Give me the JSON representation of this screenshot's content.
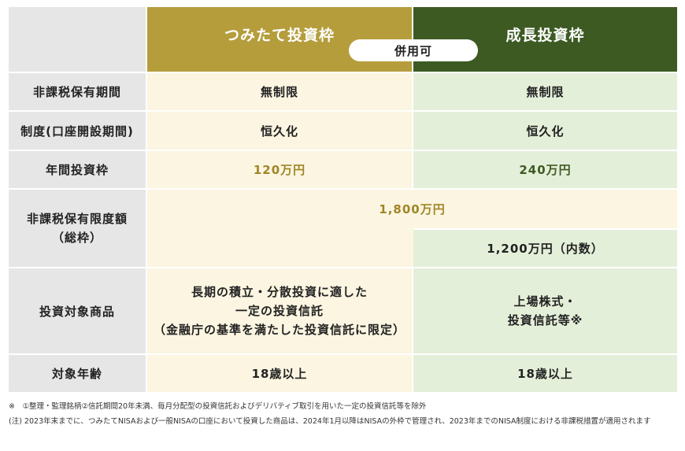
{
  "header": {
    "tsumitate": "つみたて投資枠",
    "seicho": "成長投資枠",
    "heiyo": "併用可"
  },
  "rows": {
    "hikazei_kikan": {
      "label": "非課税保有期間",
      "tsumitate": "無制限",
      "seicho": "無制限"
    },
    "seido": {
      "label": "制度(口座開設期間)",
      "tsumitate": "恒久化",
      "seicho": "恒久化"
    },
    "nenkan": {
      "label": "年間投資枠",
      "tsumitate": "120万円",
      "seicho": "240万円"
    },
    "gendo": {
      "label_line1": "非課税保有限度額",
      "label_line2": "（総枠）",
      "total": "1,800万円",
      "seicho": "1,200万円（内数）"
    },
    "shohin": {
      "label": "投資対象商品",
      "tsumitate_line1": "長期の積立・分散投資に適した",
      "tsumitate_line2": "一定の投資信託",
      "tsumitate_line3": "（金融庁の基準を満たした投資信託に限定）",
      "seicho_line1": "上場株式・",
      "seicho_line2": "投資信託等※"
    },
    "nenrei": {
      "label": "対象年齢",
      "tsumitate": "18歳以上",
      "seicho": "18歳以上"
    }
  },
  "notes": {
    "note1": "※　①整理・監理銘柄②信託期間20年未満、毎月分配型の投資信託およびデリバティブ取引を用いた一定の投資信託等を除外",
    "note2": "(注) 2023年末までに、つみたてNISAおよび一般NISAの口座において投資した商品は、2024年1月以降はNISAの外枠で管理され、2023年までのNISA制度における非課税措置が適用されます"
  },
  "colors": {
    "tsumitate_header": "#b59d3c",
    "seicho_header": "#3c5a22",
    "tsumitate_cell": "#fbf5e1",
    "seicho_cell": "#e4efd9",
    "label_cell": "#e6e6e6"
  }
}
